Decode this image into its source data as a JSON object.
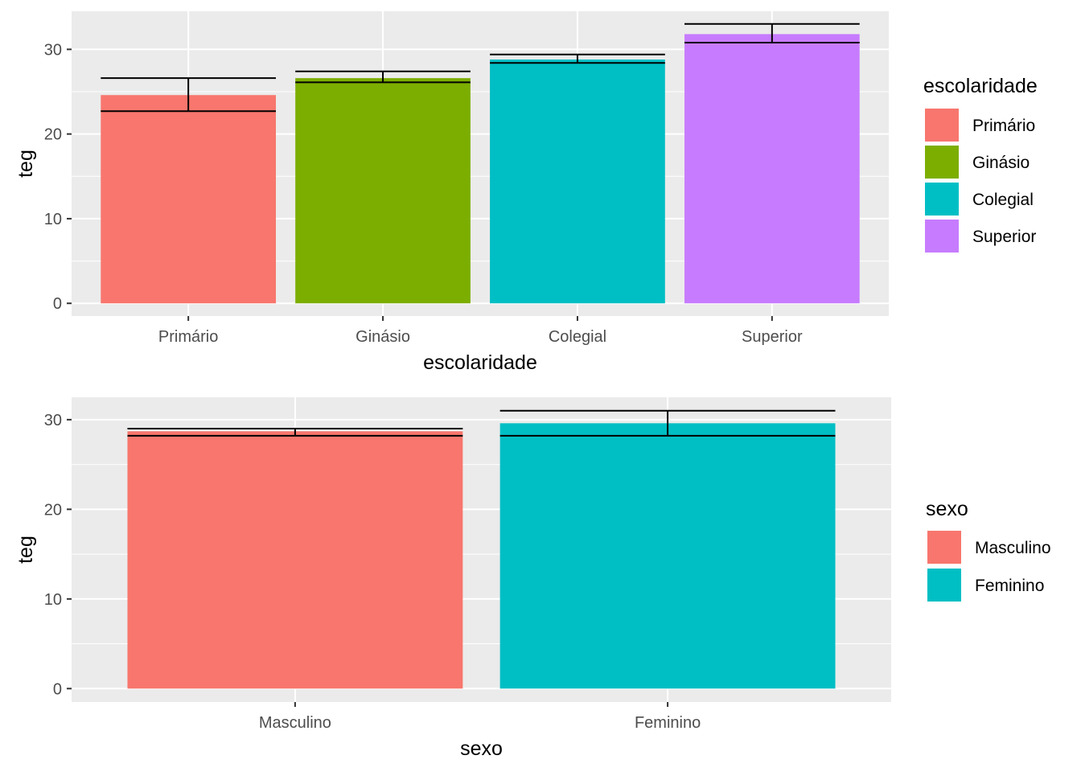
{
  "chart_data": [
    {
      "type": "bar",
      "xlabel": "escolaridade",
      "ylabel": "teg",
      "categories": [
        "Primário",
        "Ginásio",
        "Colegial",
        "Superior"
      ],
      "values": [
        24.6,
        26.6,
        28.8,
        31.8
      ],
      "error_bars": [
        [
          22.7,
          26.6
        ],
        [
          26.1,
          27.4
        ],
        [
          28.4,
          29.4
        ],
        [
          30.8,
          33.0
        ]
      ],
      "colors": [
        "#F8766D",
        "#7CAE00",
        "#00BFC4",
        "#C77CFF"
      ],
      "ylim": [
        -1.5,
        34.5
      ],
      "yticks": [
        0,
        10,
        20,
        30
      ],
      "grid": true,
      "legend": {
        "title": "escolaridade",
        "position": "right",
        "items": [
          "Primário",
          "Ginásio",
          "Colegial",
          "Superior"
        ]
      }
    },
    {
      "type": "bar",
      "xlabel": "sexo",
      "ylabel": "teg",
      "categories": [
        "Masculino",
        "Feminino"
      ],
      "values": [
        28.7,
        29.6
      ],
      "error_bars": [
        [
          28.2,
          29.0
        ],
        [
          28.2,
          31.0
        ]
      ],
      "colors": [
        "#F8766D",
        "#00BFC4"
      ],
      "ylim": [
        -1.5,
        32.5
      ],
      "yticks": [
        0,
        10,
        20,
        30
      ],
      "grid": true,
      "legend": {
        "title": "sexo",
        "position": "right",
        "items": [
          "Masculino",
          "Feminino"
        ]
      }
    }
  ]
}
